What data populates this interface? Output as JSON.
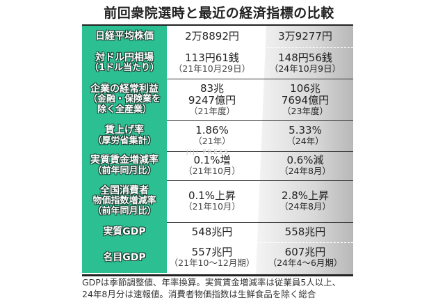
{
  "title": "前回衆院選時と最近の経済指標の比較",
  "colors": {
    "label_bg": "#2bbf92",
    "recent_bg": "#c8c8c8"
  },
  "rows": [
    {
      "label": [
        "日経平均株価"
      ],
      "prev": [
        "2万8892円"
      ],
      "prev_note": "",
      "recent": [
        "3万9277円"
      ],
      "recent_note": ""
    },
    {
      "label": [
        "対ドル円相場",
        "（1ドル当たり）"
      ],
      "prev": [
        "113円61銭"
      ],
      "prev_note": "（21年10月29日）",
      "recent": [
        "148円56銭"
      ],
      "recent_note": "（24年10月9日）"
    },
    {
      "label": [
        "企業の経常利益",
        "（金融・保険業を",
        "除く全産業）"
      ],
      "prev": [
        "83兆",
        "9247億円"
      ],
      "prev_note": "（21年度）",
      "recent": [
        "106兆",
        "7694億円"
      ],
      "recent_note": "（23年度）"
    },
    {
      "label": [
        "賃上げ率",
        "（厚労省集計）"
      ],
      "prev": [
        "1.86%"
      ],
      "prev_note": "（21年）",
      "recent": [
        "5.33%"
      ],
      "recent_note": "（24年）"
    },
    {
      "label": [
        "実質賃金増減率",
        "（前年同月比）"
      ],
      "prev": [
        "0.1%増"
      ],
      "prev_note": "（21年10月）",
      "recent": [
        "0.6%減"
      ],
      "recent_note": "（24年8月）"
    },
    {
      "label": [
        "全国消費者",
        "物価指数増減率",
        "（前年同月比）"
      ],
      "prev": [
        "0.1%上昇"
      ],
      "prev_note": "（21年10月）",
      "recent": [
        "2.8%上昇"
      ],
      "recent_note": "（24年8月）"
    },
    {
      "label": [
        "実質GDP"
      ],
      "prev": [
        "548兆円"
      ],
      "prev_note": "",
      "recent": [
        "558兆円"
      ],
      "recent_note": ""
    },
    {
      "label": [
        "名目GDP"
      ],
      "prev": [
        "557兆円"
      ],
      "prev_note": "（21年10～12月期）",
      "recent": [
        "607兆円"
      ],
      "recent_note": "（24年4～6月期）"
    }
  ],
  "footnote": [
    "GDPは季節調整値、年率換算。実質賃金増減率は従業員5人以上、",
    "24年8月分は速報値。消費者物価指数は生鮮食品を除く総合"
  ],
  "watermark": "JIJI PRESS"
}
